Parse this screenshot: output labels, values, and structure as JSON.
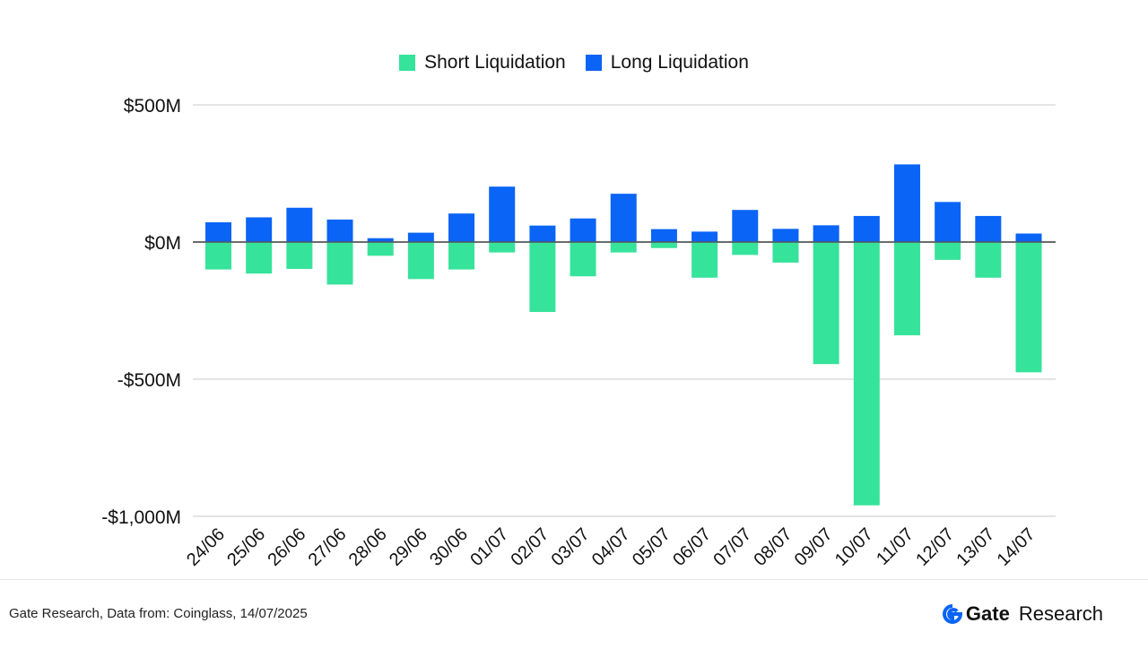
{
  "chart_data": {
    "type": "bar",
    "stacked": true,
    "legend_position": "top-center",
    "grid": true,
    "ylim": [
      -1000,
      500
    ],
    "yticks": [
      500,
      0,
      -500,
      -1000
    ],
    "ytick_labels": [
      "$500M",
      "$0M",
      "-$500M",
      "-$1,000M"
    ],
    "categories": [
      "24/06",
      "25/06",
      "26/06",
      "27/06",
      "28/06",
      "29/06",
      "30/06",
      "01/07",
      "02/07",
      "03/07",
      "04/07",
      "05/07",
      "06/07",
      "07/07",
      "08/07",
      "09/07",
      "10/07",
      "11/07",
      "12/07",
      "13/07",
      "14/07"
    ],
    "series": [
      {
        "name": "Short Liquidation",
        "color": "#36e39a",
        "values": [
          -100,
          -115,
          -98,
          -155,
          -50,
          -135,
          -100,
          -38,
          -255,
          -125,
          -38,
          -22,
          -130,
          -47,
          -75,
          -445,
          -960,
          -340,
          -65,
          -130,
          -475
        ]
      },
      {
        "name": "Long Liquidation",
        "color": "#0a64f5",
        "values": [
          72,
          90,
          125,
          82,
          14,
          34,
          104,
          202,
          60,
          86,
          176,
          47,
          38,
          117,
          48,
          61,
          95,
          283,
          146,
          95,
          31
        ]
      }
    ]
  },
  "footer": {
    "source": "Gate Research, Data from: Coinglass, 14/07/2025",
    "brand_gate": "Gate",
    "brand_research": "Research",
    "logo_color": "#0a64f5"
  }
}
